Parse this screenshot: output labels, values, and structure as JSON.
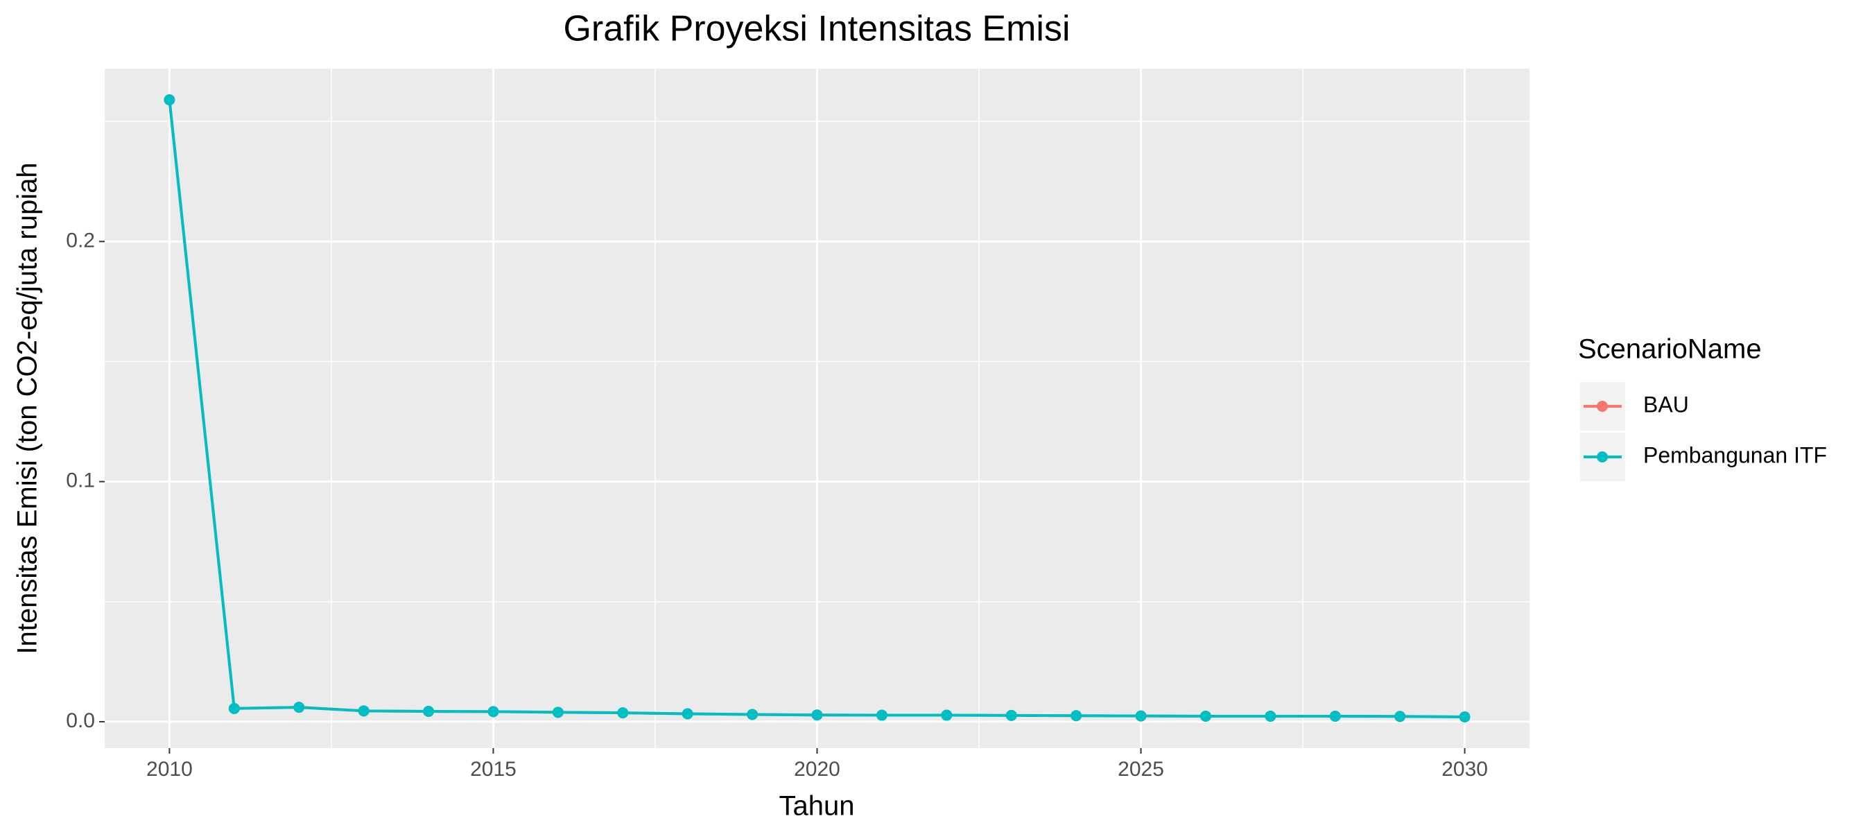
{
  "chart_data": {
    "type": "line",
    "title": "Grafik Proyeksi Intensitas Emisi",
    "x_label": "Tahun",
    "y_label": "Intensitas Emisi (ton CO2-eq/juta rupiah",
    "legend_title": "ScenarioName",
    "legend": "right",
    "grid": true,
    "x": [
      2010,
      2011,
      2012,
      2013,
      2014,
      2015,
      2016,
      2017,
      2018,
      2019,
      2020,
      2021,
      2022,
      2023,
      2024,
      2025,
      2026,
      2027,
      2028,
      2029,
      2030
    ],
    "series": [
      {
        "name": "BAU",
        "color": "#F8766D",
        "values": [
          0.259,
          0.0055,
          0.006,
          0.0045,
          0.0043,
          0.0042,
          0.0039,
          0.0037,
          0.0033,
          0.003,
          0.0028,
          0.0027,
          0.0027,
          0.0026,
          0.0025,
          0.0024,
          0.0023,
          0.0023,
          0.0023,
          0.0022,
          0.002
        ]
      },
      {
        "name": "Pembangunan ITF",
        "color": "#00BFC4",
        "values": [
          0.259,
          0.0055,
          0.006,
          0.0045,
          0.0043,
          0.0042,
          0.0039,
          0.0037,
          0.0033,
          0.003,
          0.0028,
          0.0027,
          0.0027,
          0.0026,
          0.0025,
          0.0024,
          0.0023,
          0.0023,
          0.0023,
          0.0022,
          0.002
        ]
      }
    ],
    "xlim": [
      2009,
      2031
    ],
    "xticks": [
      2010,
      2015,
      2020,
      2025,
      2030
    ],
    "ylim": [
      -0.011,
      0.272
    ],
    "yticks": [
      {
        "value": 0,
        "label": "0.0"
      },
      0.1,
      0.2
    ]
  }
}
